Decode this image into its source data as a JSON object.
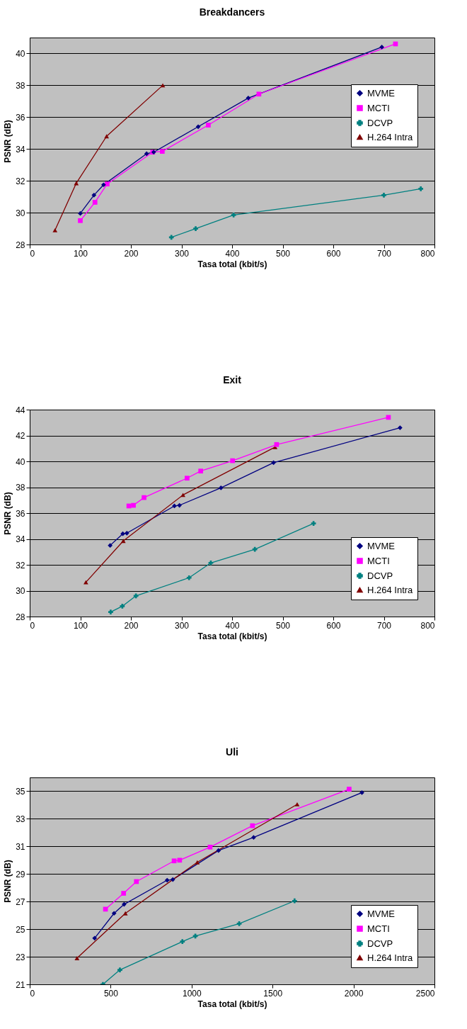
{
  "chart_data": [
    {
      "type": "line",
      "title": "Breakdancers",
      "xlabel": "Tasa total (kbit/s)",
      "ylabel": "PSNR (dB)",
      "xlim": [
        0,
        800
      ],
      "xticks": [
        0,
        100,
        200,
        300,
        400,
        500,
        600,
        700,
        800
      ],
      "ylim": [
        28,
        41
      ],
      "yticks": [
        28,
        30,
        32,
        34,
        36,
        38,
        40
      ],
      "grid": "y",
      "legend": "right",
      "series": [
        {
          "name": "MVME",
          "color": "#000080",
          "marker": "diamond",
          "x": [
            100,
            127,
            146,
            231,
            245,
            333,
            432,
            696
          ],
          "values": [
            29.95,
            31.1,
            31.75,
            33.7,
            33.8,
            35.4,
            37.2,
            40.4
          ]
        },
        {
          "name": "MCTI",
          "color": "#ff00ff",
          "marker": "square",
          "x": [
            100,
            129,
            153,
            243,
            262,
            353,
            453,
            723
          ],
          "values": [
            29.5,
            30.65,
            31.8,
            33.8,
            33.85,
            35.5,
            37.45,
            40.6
          ]
        },
        {
          "name": "DCVP",
          "color": "#008080",
          "marker": "cross",
          "x": [
            280,
            328,
            403,
            700,
            773
          ],
          "values": [
            28.45,
            29.0,
            29.85,
            31.1,
            31.5
          ]
        },
        {
          "name": "H.264 Intra",
          "color": "#800000",
          "marker": "triangle",
          "x": [
            50,
            92,
            152,
            263
          ],
          "values": [
            28.9,
            31.85,
            34.8,
            38.0
          ]
        }
      ]
    },
    {
      "type": "line",
      "title": "Exit",
      "xlabel": "Tasa total (kbit/s)",
      "ylabel": "PSNR (dB)",
      "xlim": [
        0,
        800
      ],
      "xticks": [
        0,
        100,
        200,
        300,
        400,
        500,
        600,
        700,
        800
      ],
      "ylim": [
        28,
        44
      ],
      "yticks": [
        28,
        30,
        32,
        34,
        36,
        38,
        40,
        42,
        44
      ],
      "grid": "y",
      "legend": "bottom right",
      "series": [
        {
          "name": "MVME",
          "color": "#000080",
          "marker": "diamond",
          "x": [
            159,
            184,
            192,
            286,
            296,
            378,
            482,
            732
          ],
          "values": [
            33.5,
            34.4,
            34.45,
            36.55,
            36.6,
            37.95,
            39.9,
            42.6
          ]
        },
        {
          "name": "MCTI",
          "color": "#ff00ff",
          "marker": "square",
          "x": [
            196,
            205,
            226,
            311,
            338,
            401,
            488,
            709
          ],
          "values": [
            36.55,
            36.6,
            37.2,
            38.7,
            39.25,
            40.05,
            41.3,
            43.4
          ]
        },
        {
          "name": "DCVP",
          "color": "#008080",
          "marker": "cross",
          "x": [
            160,
            183,
            210,
            315,
            358,
            445,
            561
          ],
          "values": [
            28.35,
            28.8,
            29.6,
            31.0,
            32.15,
            33.2,
            35.2
          ]
        },
        {
          "name": "H.264 Intra",
          "color": "#800000",
          "marker": "triangle",
          "x": [
            111,
            185,
            303,
            485
          ],
          "values": [
            30.65,
            33.85,
            37.4,
            41.1
          ]
        }
      ]
    },
    {
      "type": "line",
      "title": "Uli",
      "xlabel": "Tasa total (kbit/s)",
      "ylabel": "PSNR (dB)",
      "xlim": [
        0,
        2500
      ],
      "xticks": [
        0,
        500,
        1000,
        1500,
        2000,
        2500
      ],
      "ylim": [
        21,
        36
      ],
      "yticks": [
        21,
        23,
        25,
        27,
        29,
        31,
        33,
        35
      ],
      "grid": "y",
      "legend": "bottom right",
      "series": [
        {
          "name": "MVME",
          "color": "#000080",
          "marker": "diamond",
          "x": [
            401,
            521,
            583,
            849,
            884,
            1166,
            1383,
            2052
          ],
          "values": [
            24.35,
            26.15,
            26.8,
            28.55,
            28.6,
            30.7,
            31.65,
            34.9
          ]
        },
        {
          "name": "MCTI",
          "color": "#ff00ff",
          "marker": "square",
          "x": [
            468,
            580,
            659,
            892,
            926,
            1114,
            1376,
            1973
          ],
          "values": [
            26.45,
            27.6,
            28.45,
            29.95,
            30.0,
            30.95,
            32.5,
            35.15
          ]
        },
        {
          "name": "DCVP",
          "color": "#008080",
          "marker": "cross",
          "x": [
            452,
            557,
            943,
            1023,
            1294,
            1636
          ],
          "values": [
            21.0,
            22.05,
            24.1,
            24.5,
            25.4,
            27.05
          ]
        },
        {
          "name": "H.264 Intra",
          "color": "#800000",
          "marker": "triangle",
          "x": [
            292,
            591,
            1035,
            1652
          ],
          "values": [
            22.9,
            26.15,
            29.85,
            34.05
          ]
        }
      ]
    }
  ]
}
